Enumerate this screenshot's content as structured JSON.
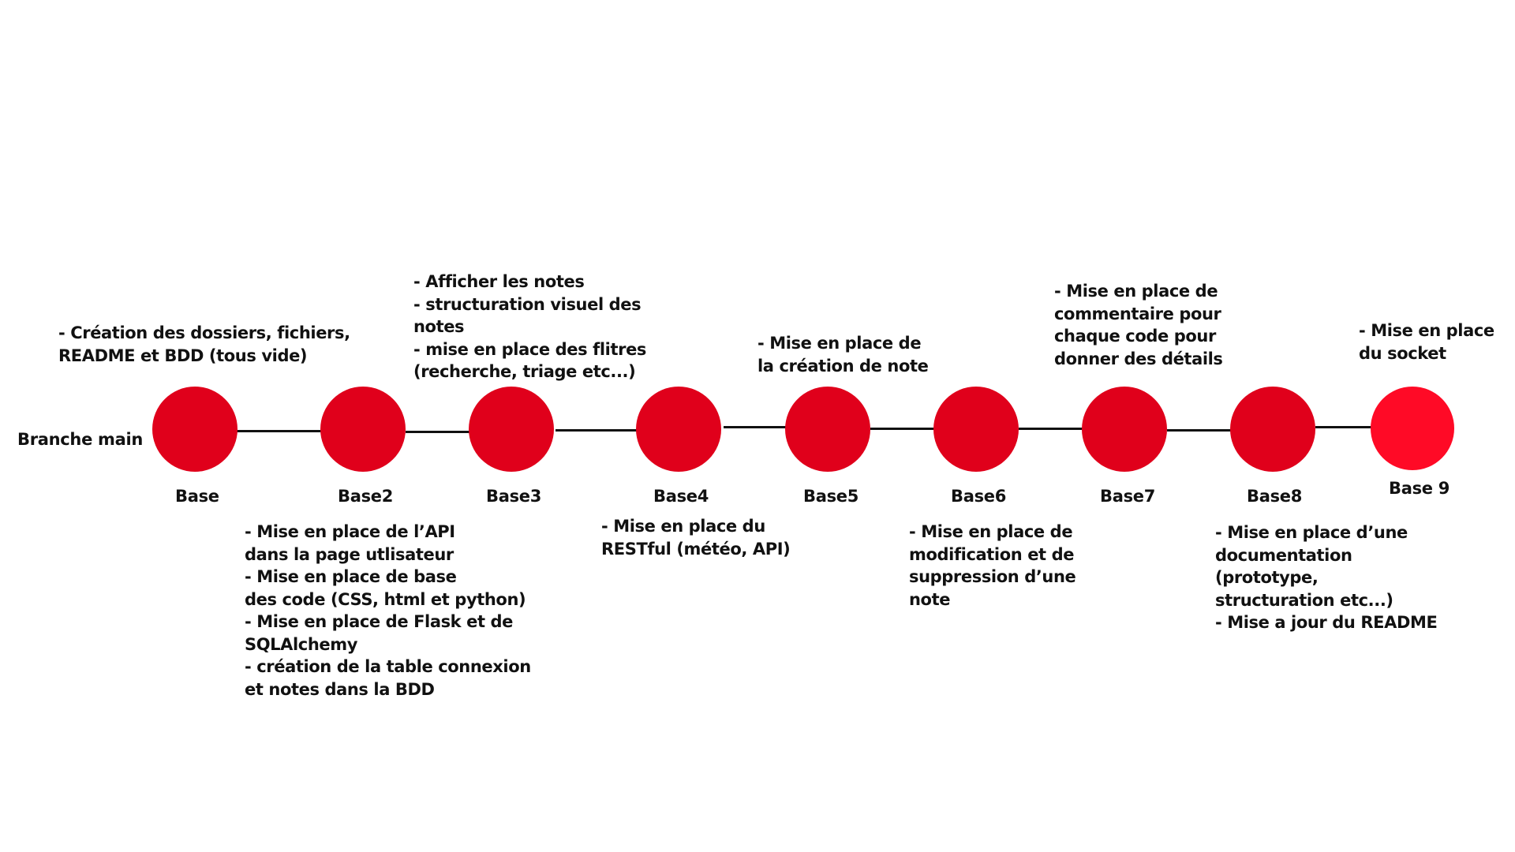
{
  "branch": {
    "label": "Branche main"
  },
  "colors": {
    "node": "#e0001b",
    "node_last": "#ff0a26",
    "line": "#111111"
  },
  "commits": [
    {
      "name": "Base",
      "note": "- Création des dossiers, fichiers,\nREADME et BDD (tous vide)",
      "note_position": "above"
    },
    {
      "name": "Base2",
      "note": "- Mise en place de l’API\ndans la page utlisateur\n- Mise en place de base\ndes code (CSS, html et python)\n- Mise en place de Flask et de\nSQLAlchemy\n- création de la table connexion\net notes dans la BDD",
      "note_position": "below"
    },
    {
      "name": "Base3",
      "note": "- Afficher les notes\n- structuration visuel des\nnotes\n- mise en place des flitres\n(recherche, triage etc...)",
      "note_position": "above"
    },
    {
      "name": "Base4",
      "note": "- Mise en place du\nRESTful (météo, API)",
      "note_position": "below"
    },
    {
      "name": "Base5",
      "note": "- Mise en place de\nla création de note",
      "note_position": "above"
    },
    {
      "name": "Base6",
      "note": "- Mise en place de\nmodification et de\nsuppression d’une\nnote",
      "note_position": "below"
    },
    {
      "name": "Base7",
      "note": "- Mise en place de\ncommentaire pour\nchaque code pour\ndonner des détails",
      "note_position": "above"
    },
    {
      "name": "Base8",
      "note": "- Mise en place d’une\ndocumentation\n(prototype,\nstructuration etc...)\n- Mise a jour du README",
      "note_position": "below"
    },
    {
      "name": "Base 9",
      "note": "- Mise en place\ndu socket",
      "note_position": "above"
    }
  ]
}
